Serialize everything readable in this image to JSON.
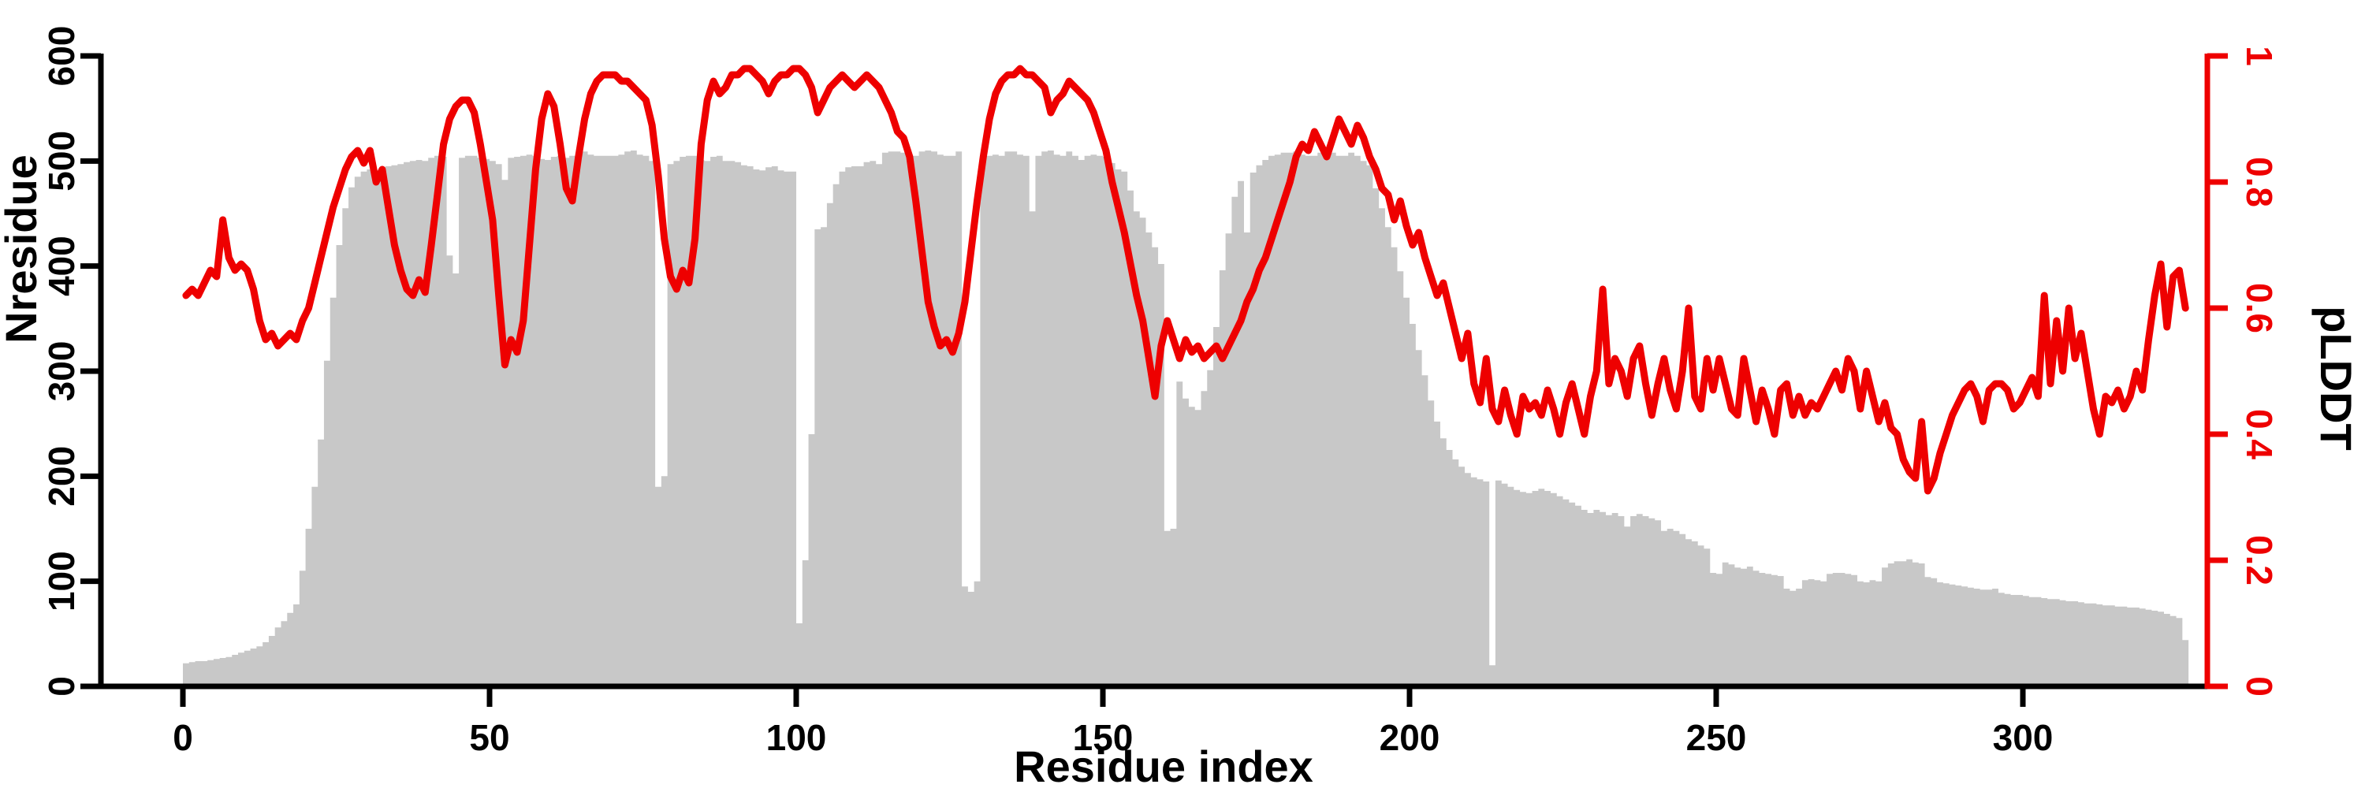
{
  "chart_data": {
    "type": "bar+line",
    "title": "",
    "xlabel": "Residue index",
    "ylabel_left": "Nresidue",
    "ylabel_right": "pLDDT",
    "x_is_residue_index_starting_at": 0,
    "axes": {
      "x": {
        "ticks": [
          0,
          50,
          100,
          150,
          200,
          250,
          300
        ],
        "range_shown": [
          0,
          326
        ],
        "color": "#000000"
      },
      "y_left": {
        "ticks": [
          0,
          100,
          200,
          300,
          400,
          500,
          600
        ],
        "range": [
          0,
          600
        ],
        "color": "#000000"
      },
      "y_right": {
        "tick_labels": [
          "0",
          "0.2",
          "0.4",
          "0.6",
          "0.8",
          "1"
        ],
        "tick_values": [
          0,
          0.2,
          0.4,
          0.6,
          0.8,
          1
        ],
        "range": [
          0,
          1
        ],
        "color": "#ee0000"
      }
    },
    "grid": "off",
    "legend": "none",
    "series": [
      {
        "name": "Nresidue",
        "type": "bar",
        "axis": "left",
        "color": "#c8c8c8",
        "values": [
          22,
          23,
          24,
          24,
          25,
          26,
          27,
          28,
          30,
          32,
          34,
          36,
          38,
          42,
          48,
          56,
          62,
          70,
          78,
          110,
          150,
          190,
          235,
          310,
          370,
          420,
          455,
          475,
          485,
          490,
          492,
          488,
          494,
          495,
          496,
          497,
          499,
          500,
          501,
          500,
          503,
          505,
          504,
          410,
          393,
          503,
          505,
          505,
          503,
          502,
          500,
          497,
          482,
          503,
          504,
          505,
          506,
          505,
          502,
          501,
          504,
          505,
          503,
          505,
          508,
          509,
          506,
          505,
          505,
          505,
          505,
          506,
          509,
          510,
          506,
          505,
          500,
          190,
          200,
          497,
          500,
          504,
          505,
          505,
          501,
          500,
          504,
          505,
          500,
          500,
          499,
          496,
          495,
          492,
          491,
          494,
          495,
          491,
          490,
          490,
          60,
          120,
          240,
          435,
          437,
          460,
          478,
          490,
          494,
          495,
          495,
          499,
          500,
          497,
          508,
          509,
          509,
          508,
          506,
          505,
          509,
          510,
          509,
          506,
          505,
          505,
          509,
          95,
          90,
          100,
          505,
          505,
          506,
          505,
          509,
          509,
          506,
          505,
          452,
          505,
          509,
          510,
          506,
          505,
          509,
          505,
          501,
          505,
          506,
          505,
          504,
          498,
          492,
          490,
          472,
          452,
          446,
          432,
          418,
          402,
          148,
          150,
          290,
          274,
          266,
          263,
          281,
          301,
          342,
          396,
          431,
          466,
          481,
          432,
          489,
          496,
          501,
          505,
          506,
          508,
          508,
          509,
          506,
          505,
          505,
          508,
          510,
          508,
          505,
          505,
          508,
          505,
          500,
          496,
          474,
          455,
          437,
          418,
          395,
          370,
          345,
          320,
          296,
          272,
          252,
          236,
          225,
          216,
          209,
          203,
          199,
          197,
          195,
          20,
          196,
          193,
          190,
          187,
          185,
          184,
          186,
          188,
          186,
          184,
          181,
          178,
          175,
          172,
          168,
          165,
          168,
          166,
          163,
          165,
          162,
          152,
          162,
          164,
          162,
          160,
          158,
          148,
          150,
          148,
          145,
          140,
          138,
          134,
          131,
          108,
          107,
          118,
          116,
          113,
          112,
          114,
          110,
          108,
          107,
          106,
          105,
          93,
          91,
          93,
          101,
          102,
          101,
          100,
          107,
          108,
          108,
          107,
          106,
          100,
          99,
          101,
          100,
          113,
          117,
          119,
          119,
          121,
          118,
          117,
          104,
          103,
          99,
          98,
          97,
          96,
          95,
          94,
          93,
          92,
          92,
          93,
          89,
          88,
          87,
          87,
          86,
          85,
          85,
          84,
          83,
          83,
          82,
          81,
          81,
          80,
          79,
          79,
          78,
          77,
          77,
          76,
          76,
          75,
          75,
          74,
          73,
          72,
          71,
          69,
          67,
          65,
          44
        ]
      },
      {
        "name": "pLDDT",
        "type": "line",
        "axis": "right",
        "color": "#ee0000",
        "values": [
          0.62,
          0.63,
          0.62,
          0.64,
          0.66,
          0.65,
          0.74,
          0.68,
          0.66,
          0.67,
          0.66,
          0.63,
          0.58,
          0.55,
          0.56,
          0.54,
          0.55,
          0.56,
          0.55,
          0.58,
          0.6,
          0.64,
          0.68,
          0.72,
          0.76,
          0.79,
          0.82,
          0.84,
          0.85,
          0.83,
          0.85,
          0.8,
          0.82,
          0.76,
          0.7,
          0.66,
          0.63,
          0.62,
          0.645,
          0.625,
          0.7,
          0.78,
          0.86,
          0.9,
          0.92,
          0.93,
          0.93,
          0.91,
          0.86,
          0.8,
          0.74,
          0.62,
          0.51,
          0.55,
          0.53,
          0.58,
          0.7,
          0.82,
          0.9,
          0.94,
          0.92,
          0.86,
          0.79,
          0.77,
          0.84,
          0.9,
          0.94,
          0.96,
          0.97,
          0.97,
          0.97,
          0.96,
          0.96,
          0.95,
          0.94,
          0.93,
          0.89,
          0.81,
          0.71,
          0.65,
          0.63,
          0.66,
          0.64,
          0.71,
          0.86,
          0.93,
          0.96,
          0.94,
          0.95,
          0.97,
          0.97,
          0.98,
          0.98,
          0.97,
          0.96,
          0.94,
          0.96,
          0.97,
          0.97,
          0.98,
          0.98,
          0.97,
          0.95,
          0.91,
          0.93,
          0.95,
          0.96,
          0.97,
          0.96,
          0.95,
          0.96,
          0.97,
          0.96,
          0.95,
          0.93,
          0.91,
          0.88,
          0.87,
          0.84,
          0.77,
          0.69,
          0.61,
          0.57,
          0.54,
          0.55,
          0.53,
          0.56,
          0.61,
          0.69,
          0.77,
          0.84,
          0.9,
          0.94,
          0.96,
          0.97,
          0.97,
          0.98,
          0.97,
          0.97,
          0.96,
          0.95,
          0.91,
          0.93,
          0.94,
          0.96,
          0.95,
          0.94,
          0.93,
          0.91,
          0.88,
          0.85,
          0.8,
          0.76,
          0.72,
          0.67,
          0.62,
          0.58,
          0.52,
          0.46,
          0.54,
          0.58,
          0.55,
          0.52,
          0.55,
          0.53,
          0.54,
          0.52,
          0.53,
          0.54,
          0.52,
          0.54,
          0.56,
          0.58,
          0.61,
          0.63,
          0.66,
          0.68,
          0.71,
          0.74,
          0.77,
          0.8,
          0.84,
          0.86,
          0.85,
          0.88,
          0.86,
          0.84,
          0.87,
          0.9,
          0.88,
          0.86,
          0.89,
          0.87,
          0.84,
          0.82,
          0.79,
          0.78,
          0.74,
          0.77,
          0.73,
          0.7,
          0.72,
          0.68,
          0.65,
          0.62,
          0.64,
          0.6,
          0.56,
          0.52,
          0.56,
          0.48,
          0.45,
          0.52,
          0.44,
          0.42,
          0.47,
          0.43,
          0.4,
          0.46,
          0.44,
          0.45,
          0.43,
          0.47,
          0.44,
          0.4,
          0.45,
          0.48,
          0.44,
          0.4,
          0.46,
          0.5,
          0.63,
          0.48,
          0.52,
          0.5,
          0.46,
          0.52,
          0.54,
          0.48,
          0.43,
          0.48,
          0.52,
          0.47,
          0.44,
          0.5,
          0.6,
          0.46,
          0.44,
          0.52,
          0.47,
          0.52,
          0.48,
          0.44,
          0.43,
          0.52,
          0.47,
          0.42,
          0.47,
          0.44,
          0.4,
          0.47,
          0.48,
          0.43,
          0.46,
          0.43,
          0.45,
          0.44,
          0.46,
          0.48,
          0.5,
          0.47,
          0.52,
          0.5,
          0.44,
          0.5,
          0.46,
          0.42,
          0.45,
          0.41,
          0.4,
          0.36,
          0.34,
          0.33,
          0.42,
          0.31,
          0.33,
          0.37,
          0.4,
          0.43,
          0.45,
          0.47,
          0.48,
          0.46,
          0.42,
          0.47,
          0.48,
          0.48,
          0.47,
          0.44,
          0.45,
          0.47,
          0.49,
          0.46,
          0.62,
          0.48,
          0.58,
          0.5,
          0.6,
          0.52,
          0.56,
          0.5,
          0.44,
          0.4,
          0.46,
          0.45,
          0.47,
          0.44,
          0.46,
          0.5,
          0.47,
          0.55,
          0.62,
          0.67,
          0.57,
          0.65,
          0.66,
          0.6
        ]
      }
    ]
  }
}
